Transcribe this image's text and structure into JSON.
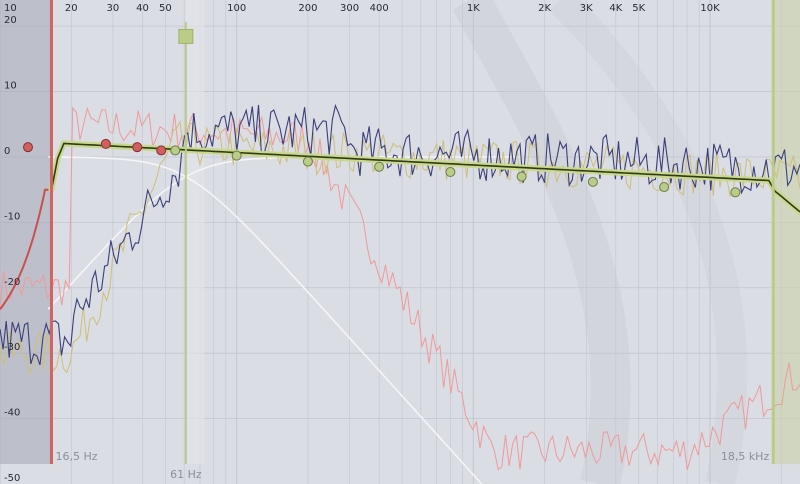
{
  "x_axis": {
    "ticks": [
      {
        "label": "10",
        "hz": 10
      },
      {
        "label": "20",
        "hz": 20
      },
      {
        "label": "30",
        "hz": 30
      },
      {
        "label": "40",
        "hz": 40
      },
      {
        "label": "50",
        "hz": 50
      },
      {
        "label": "100",
        "hz": 100
      },
      {
        "label": "200",
        "hz": 200
      },
      {
        "label": "300",
        "hz": 300
      },
      {
        "label": "400",
        "hz": 400
      },
      {
        "label": "1K",
        "hz": 1000
      },
      {
        "label": "2K",
        "hz": 2000
      },
      {
        "label": "3K",
        "hz": 3000
      },
      {
        "label": "4K",
        "hz": 4000
      },
      {
        "label": "5K",
        "hz": 5000
      },
      {
        "label": "10K",
        "hz": 10000
      }
    ],
    "range_hz": [
      10,
      24000
    ]
  },
  "y_axis": {
    "ticks": [
      {
        "label": "20",
        "db": 20
      },
      {
        "label": "10",
        "db": 10
      },
      {
        "label": "0",
        "db": 0
      },
      {
        "label": "-10",
        "db": -10
      },
      {
        "label": "-20",
        "db": -20
      },
      {
        "label": "-30",
        "db": -30
      },
      {
        "label": "-40",
        "db": -40
      },
      {
        "label": "-50",
        "db": -50
      }
    ],
    "range_db": [
      24,
      -50
    ]
  },
  "markers": {
    "low_cutoff_label": "16,5 Hz",
    "low_cutoff_hz": 16.5,
    "high_cutoff_label": "18,5 kHz",
    "high_cutoff_hz": 18500,
    "crossover_label": "61 Hz",
    "crossover_hz": 61
  },
  "colors": {
    "background": "#dadde4",
    "grid": "#c2c6ce",
    "excluded": "#a6a8b4",
    "target": "#2e3a1c",
    "target_glow": "#c9d88a",
    "blue": "#3a3f78",
    "yellow": "#cdbf7a",
    "pink": "#ef9a9a",
    "red": "#c85050",
    "white": "#f5f5f7",
    "dark": "#222222",
    "green_marker": "#b9cc88"
  },
  "handles": {
    "red_db": [
      2,
      1.5,
      1
    ],
    "red_hz": [
      28,
      38,
      48
    ],
    "green_hz": [
      55,
      100,
      200,
      400,
      800,
      1600,
      3200,
      6400,
      12800
    ],
    "green_db": [
      1.0,
      0.2,
      -0.7,
      -1.5,
      -2.3,
      -3.0,
      -3.8,
      -4.6,
      -5.4
    ]
  }
}
